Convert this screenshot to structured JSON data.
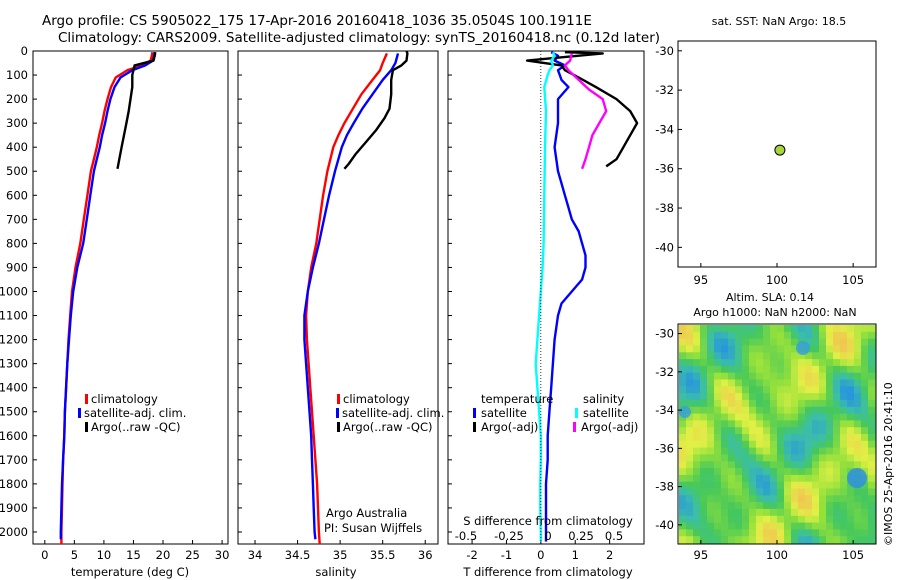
{
  "header": {
    "line1": "Argo profile: CS 5905022_175 17-Apr-2016 20160418_1036 35.0504S 100.1911E",
    "line2": "Climatology: CARS2009. Satellite-adjusted climatology: synTS_20160418.nc (0.12d later)"
  },
  "colors": {
    "climatology": "#ff0000",
    "satellite": "#0000ff",
    "argo": "#000000",
    "s_satellite": "#00ffff",
    "s_argo": "#ff00ff",
    "marker": "#a6d63a"
  },
  "depth_ticks": [
    "0",
    "100",
    "200",
    "300",
    "400",
    "500",
    "600",
    "700",
    "800",
    "900",
    "1000",
    "1100",
    "1200",
    "1300",
    "1400",
    "1500",
    "1600",
    "1700",
    "1800",
    "1900",
    "2000"
  ],
  "chart_data": [
    {
      "id": "temperature",
      "type": "line",
      "xlabel": "temperature (deg C)",
      "ylabel": "",
      "xlim": [
        -2,
        31
      ],
      "ylim": [
        2050,
        0
      ],
      "xticks": [
        "0",
        "5",
        "10",
        "15",
        "20",
        "25",
        "30"
      ],
      "legend_placement": "bottom-right",
      "legend": [
        "climatology",
        "satellite-adj. clim.",
        "Argo(..raw -QC)"
      ],
      "series": [
        {
          "name": "climatology",
          "color": "#ff0000",
          "points": [
            [
              18.2,
              5
            ],
            [
              18.1,
              20
            ],
            [
              17.9,
              40
            ],
            [
              16.5,
              60
            ],
            [
              14,
              80
            ],
            [
              12,
              110
            ],
            [
              11.2,
              150
            ],
            [
              10.6,
              200
            ],
            [
              10.1,
              250
            ],
            [
              9.7,
              300
            ],
            [
              9.2,
              350
            ],
            [
              8.8,
              400
            ],
            [
              8.3,
              450
            ],
            [
              7.8,
              500
            ],
            [
              7.2,
              600
            ],
            [
              6.6,
              700
            ],
            [
              6,
              800
            ],
            [
              5.2,
              900
            ],
            [
              4.6,
              1000
            ],
            [
              4.3,
              1100
            ],
            [
              4,
              1200
            ],
            [
              3.8,
              1300
            ],
            [
              3.6,
              1400
            ],
            [
              3.4,
              1500
            ],
            [
              3.3,
              1600
            ],
            [
              3.1,
              1700
            ],
            [
              3,
              1800
            ],
            [
              2.9,
              1900
            ],
            [
              2.8,
              2000
            ],
            [
              2.8,
              2050
            ]
          ]
        },
        {
          "name": "satellite-adj. clim.",
          "color": "#0000ff",
          "points": [
            [
              18.6,
              5
            ],
            [
              18.5,
              20
            ],
            [
              18.3,
              40
            ],
            [
              17,
              60
            ],
            [
              14.8,
              80
            ],
            [
              12.8,
              110
            ],
            [
              11.8,
              150
            ],
            [
              11.1,
              200
            ],
            [
              10.6,
              250
            ],
            [
              10.2,
              300
            ],
            [
              9.7,
              350
            ],
            [
              9.3,
              400
            ],
            [
              8.8,
              450
            ],
            [
              8.3,
              500
            ],
            [
              7.7,
              600
            ],
            [
              7.1,
              700
            ],
            [
              6.5,
              800
            ],
            [
              5.5,
              900
            ],
            [
              4.8,
              1000
            ],
            [
              4.4,
              1100
            ],
            [
              4.1,
              1200
            ],
            [
              3.8,
              1300
            ],
            [
              3.6,
              1400
            ],
            [
              3.4,
              1500
            ],
            [
              3.3,
              1600
            ],
            [
              3.1,
              1700
            ],
            [
              2.9,
              1800
            ],
            [
              2.8,
              1900
            ],
            [
              2.7,
              2000
            ],
            [
              2.7,
              2030
            ]
          ]
        },
        {
          "name": "Argo(..raw -QC)",
          "color": "#000000",
          "points": [
            [
              18.7,
              5
            ],
            [
              18.6,
              20
            ],
            [
              18.4,
              40
            ],
            [
              15.2,
              60
            ],
            [
              14.8,
              100
            ],
            [
              14.8,
              150
            ],
            [
              14.5,
              200
            ],
            [
              14.2,
              250
            ],
            [
              13.8,
              300
            ],
            [
              13.4,
              350
            ],
            [
              13,
              400
            ],
            [
              12.6,
              450
            ],
            [
              12.3,
              490
            ]
          ]
        }
      ]
    },
    {
      "id": "salinity",
      "type": "line",
      "xlabel": "salinity",
      "ylabel": "",
      "xlim": [
        33.8,
        36.15
      ],
      "ylim": [
        2050,
        0
      ],
      "xticks": [
        "34",
        "34.5",
        "35",
        "35.5",
        "36"
      ],
      "legend_placement": "bottom-right",
      "legend": [
        "climatology",
        "satellite-adj. clim.",
        "Argo(..raw -QC)"
      ],
      "annotation": [
        "Argo Australia",
        "PI: Susan Wijffels"
      ],
      "series": [
        {
          "name": "climatology",
          "color": "#ff0000",
          "points": [
            [
              35.55,
              10
            ],
            [
              35.5,
              50
            ],
            [
              35.47,
              80
            ],
            [
              35.38,
              120
            ],
            [
              35.25,
              180
            ],
            [
              35.15,
              240
            ],
            [
              35.05,
              300
            ],
            [
              34.98,
              350
            ],
            [
              34.92,
              400
            ],
            [
              34.85,
              500
            ],
            [
              34.8,
              600
            ],
            [
              34.76,
              700
            ],
            [
              34.72,
              800
            ],
            [
              34.66,
              900
            ],
            [
              34.62,
              1000
            ],
            [
              34.6,
              1100
            ],
            [
              34.61,
              1200
            ],
            [
              34.63,
              1300
            ],
            [
              34.65,
              1400
            ],
            [
              34.67,
              1500
            ],
            [
              34.69,
              1600
            ],
            [
              34.71,
              1700
            ],
            [
              34.73,
              1800
            ],
            [
              34.74,
              1900
            ],
            [
              34.75,
              2000
            ],
            [
              34.76,
              2050
            ]
          ]
        },
        {
          "name": "satellite-adj. clim.",
          "color": "#0000ff",
          "points": [
            [
              35.68,
              10
            ],
            [
              35.65,
              50
            ],
            [
              35.6,
              80
            ],
            [
              35.5,
              120
            ],
            [
              35.38,
              180
            ],
            [
              35.26,
              240
            ],
            [
              35.16,
              300
            ],
            [
              35.08,
              350
            ],
            [
              35.02,
              400
            ],
            [
              34.94,
              500
            ],
            [
              34.87,
              600
            ],
            [
              34.81,
              700
            ],
            [
              34.75,
              800
            ],
            [
              34.68,
              900
            ],
            [
              34.62,
              1000
            ],
            [
              34.58,
              1100
            ],
            [
              34.58,
              1200
            ],
            [
              34.6,
              1300
            ],
            [
              34.62,
              1400
            ],
            [
              34.64,
              1500
            ],
            [
              34.66,
              1600
            ],
            [
              34.67,
              1700
            ],
            [
              34.68,
              1800
            ],
            [
              34.69,
              1900
            ],
            [
              34.7,
              2000
            ],
            [
              34.71,
              2030
            ]
          ]
        },
        {
          "name": "Argo(..raw -QC)",
          "color": "#000000",
          "points": [
            [
              35.78,
              0
            ],
            [
              35.79,
              10
            ],
            [
              35.78,
              40
            ],
            [
              35.72,
              60
            ],
            [
              35.62,
              80
            ],
            [
              35.6,
              120
            ],
            [
              35.6,
              180
            ],
            [
              35.58,
              240
            ],
            [
              35.52,
              280
            ],
            [
              35.42,
              330
            ],
            [
              35.3,
              380
            ],
            [
              35.18,
              430
            ],
            [
              35.1,
              470
            ],
            [
              35.05,
              490
            ]
          ]
        }
      ]
    },
    {
      "id": "difference",
      "type": "line",
      "xlabel": "T difference from climatology",
      "xlabel_top": "S difference from climatology",
      "ylabel": "",
      "xlim": [
        -2.7,
        3
      ],
      "ylim": [
        2050,
        0
      ],
      "xticks": [
        "-2",
        "-1",
        "0",
        "1",
        "2"
      ],
      "xticks_s": [
        "-0.5",
        "-0.25",
        "0",
        "0.25",
        "0.5"
      ],
      "legend_placement": "bottom",
      "legend_headers": [
        "temperature",
        "salinity"
      ],
      "legend": [
        "satellite",
        "Argo(-adj)",
        "satellite",
        "Argo(-adj)"
      ],
      "series": [
        {
          "name": "satellite",
          "color": "#0000ff",
          "points": [
            [
              0.3,
              5
            ],
            [
              0.5,
              20
            ],
            [
              0.4,
              40
            ],
            [
              0.7,
              60
            ],
            [
              0.5,
              80
            ],
            [
              0.6,
              120
            ],
            [
              0.8,
              150
            ],
            [
              0.5,
              200
            ],
            [
              0.5,
              300
            ],
            [
              0.4,
              400
            ],
            [
              0.5,
              500
            ],
            [
              0.6,
              550
            ],
            [
              0.7,
              600
            ],
            [
              0.8,
              650
            ],
            [
              0.9,
              700
            ],
            [
              1.1,
              750
            ],
            [
              1.2,
              800
            ],
            [
              1.3,
              850
            ],
            [
              1.3,
              900
            ],
            [
              1.2,
              950
            ],
            [
              0.9,
              1000
            ],
            [
              0.6,
              1050
            ],
            [
              0.5,
              1100
            ],
            [
              0.4,
              1200
            ],
            [
              0.35,
              1300
            ],
            [
              0.3,
              1400
            ],
            [
              0.25,
              1500
            ],
            [
              0.2,
              1600
            ],
            [
              0.2,
              1700
            ],
            [
              0.15,
              1800
            ],
            [
              0.15,
              1900
            ],
            [
              0.15,
              2000
            ],
            [
              0.15,
              2040
            ]
          ]
        },
        {
          "name": "Argo(-adj)",
          "color": "#000000",
          "points": [
            [
              0.7,
              5
            ],
            [
              1.8,
              10
            ],
            [
              -0.4,
              40
            ],
            [
              0.6,
              60
            ],
            [
              0.7,
              80
            ],
            [
              1.1,
              110
            ],
            [
              1.6,
              150
            ],
            [
              2.2,
              200
            ],
            [
              2.6,
              250
            ],
            [
              2.8,
              300
            ],
            [
              2.6,
              350
            ],
            [
              2.4,
              400
            ],
            [
              2.2,
              450
            ],
            [
              1.9,
              480
            ]
          ]
        },
        {
          "name": "satellite",
          "color": "#00ffff",
          "points": [
            [
              0.35,
              5
            ],
            [
              0.4,
              20
            ],
            [
              0.3,
              40
            ],
            [
              0.35,
              60
            ],
            [
              0.25,
              80
            ],
            [
              0.2,
              100
            ],
            [
              0.1,
              150
            ],
            [
              0.15,
              250
            ],
            [
              0.12,
              400
            ],
            [
              0.1,
              600
            ],
            [
              0.08,
              800
            ],
            [
              0.05,
              900
            ],
            [
              0.0,
              1000
            ],
            [
              -0.05,
              1100
            ],
            [
              -0.1,
              1200
            ],
            [
              -0.15,
              1300
            ],
            [
              -0.1,
              1400
            ],
            [
              -0.05,
              1500
            ],
            [
              0.0,
              1600
            ],
            [
              0.0,
              1700
            ],
            [
              -0.02,
              1800
            ],
            [
              -0.02,
              1900
            ],
            [
              0.0,
              2000
            ],
            [
              0.0,
              2040
            ]
          ]
        },
        {
          "name": "Argo(-adj)",
          "color": "#ff00ff",
          "points": [
            [
              0.9,
              10
            ],
            [
              0.85,
              40
            ],
            [
              0.7,
              60
            ],
            [
              0.8,
              80
            ],
            [
              1.1,
              120
            ],
            [
              1.4,
              160
            ],
            [
              1.8,
              200
            ],
            [
              1.9,
              250
            ],
            [
              1.7,
              300
            ],
            [
              1.5,
              350
            ],
            [
              1.4,
              400
            ],
            [
              1.3,
              450
            ],
            [
              1.2,
              490
            ]
          ]
        }
      ]
    },
    {
      "id": "sst_map",
      "type": "scatter",
      "title": "sat. SST: NaN Argo: 18.5",
      "xlim": [
        93.5,
        106.5
      ],
      "ylim": [
        -41,
        -29.5
      ],
      "xticks": [
        "95",
        "100",
        "105"
      ],
      "yticks": [
        "-30",
        "-32",
        "-34",
        "-36",
        "-38",
        "-40"
      ],
      "points": [
        {
          "x": 100.19,
          "y": -35.05
        }
      ]
    },
    {
      "id": "sla_map",
      "type": "heatmap",
      "title_line1": "Altim. SLA: 0.14",
      "title_line2": "Argo h1000: NaN h2000: NaN",
      "xlim": [
        93.5,
        106.5
      ],
      "ylim": [
        -41,
        -29.5
      ],
      "xticks": [
        "95",
        "100",
        "105"
      ],
      "yticks": [
        "-30",
        "-32",
        "-34",
        "-36",
        "-38",
        "-40"
      ]
    }
  ],
  "footer": {
    "credit": "©IMOS 25-Apr-2016 20:41:10"
  }
}
